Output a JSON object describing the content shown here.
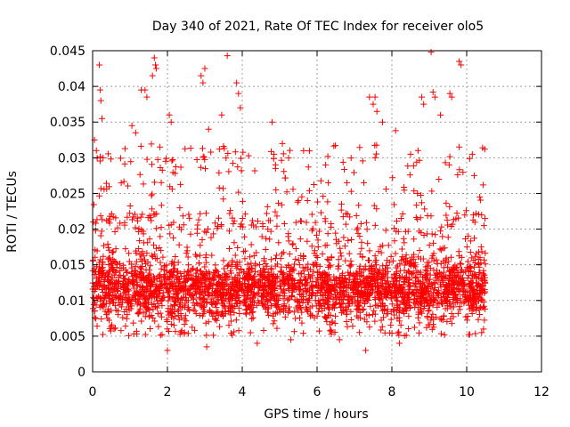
{
  "chart_data": {
    "type": "scatter",
    "title": "Day 340 of 2021, Rate Of TEC Index for receiver olo5",
    "xlabel": "GPS time / hours",
    "ylabel": "ROTI / TECUs",
    "xlim": [
      0,
      12
    ],
    "ylim": [
      0,
      0.045
    ],
    "x_ticks": [
      "0",
      "2",
      "4",
      "6",
      "8",
      "10",
      "12"
    ],
    "y_ticks": [
      "0",
      "0.005",
      "0.01",
      "0.015",
      "0.02",
      "0.025",
      "0.03",
      "0.035",
      "0.04",
      "0.045"
    ],
    "x_tick_values": [
      0,
      2,
      4,
      6,
      8,
      10,
      12
    ],
    "y_tick_values": [
      0,
      0.005,
      0.01,
      0.015,
      0.02,
      0.025,
      0.03,
      0.035,
      0.04,
      0.045
    ],
    "grid": true,
    "marker": "+",
    "color": "#ff0000",
    "series": [
      {
        "name": "ROTI",
        "x_range": [
          0,
          10.5
        ],
        "typical_range": [
          0.005,
          0.02
        ],
        "bulk_center": 0.011,
        "points": [
          [
            0.05,
            0.0325
          ],
          [
            0.1,
            0.031
          ],
          [
            0.18,
            0.043
          ],
          [
            0.2,
            0.0395
          ],
          [
            0.22,
            0.038
          ],
          [
            0.25,
            0.0355
          ],
          [
            0.28,
            0.03
          ],
          [
            0.08,
            0.0198
          ],
          [
            0.05,
            0.0085
          ],
          [
            1.05,
            0.0345
          ],
          [
            1.15,
            0.0335
          ],
          [
            1.3,
            0.0395
          ],
          [
            1.4,
            0.0395
          ],
          [
            1.45,
            0.0385
          ],
          [
            1.6,
            0.0415
          ],
          [
            1.65,
            0.044
          ],
          [
            1.68,
            0.043
          ],
          [
            1.7,
            0.0425
          ],
          [
            1.8,
            0.0315
          ],
          [
            2.05,
            0.036
          ],
          [
            2.1,
            0.035
          ],
          [
            2.9,
            0.0415
          ],
          [
            2.95,
            0.0405
          ],
          [
            3.0,
            0.0425
          ],
          [
            3.1,
            0.034
          ],
          [
            3.45,
            0.036
          ],
          [
            3.6,
            0.0443
          ],
          [
            3.85,
            0.0405
          ],
          [
            3.9,
            0.039
          ],
          [
            3.95,
            0.037
          ],
          [
            4.8,
            0.035
          ],
          [
            4.85,
            0.0305
          ],
          [
            4.9,
            0.0255
          ],
          [
            5.5,
            0.024
          ],
          [
            6.3,
            0.0265
          ],
          [
            6.8,
            0.0265
          ],
          [
            7.3,
            0.003
          ],
          [
            7.25,
            0.0265
          ],
          [
            7.4,
            0.0385
          ],
          [
            7.5,
            0.0375
          ],
          [
            7.55,
            0.0385
          ],
          [
            7.6,
            0.0365
          ],
          [
            7.75,
            0.035
          ],
          [
            8.1,
            0.0338
          ],
          [
            8.5,
            0.0305
          ],
          [
            8.7,
            0.031
          ],
          [
            8.8,
            0.0385
          ],
          [
            8.85,
            0.0375
          ],
          [
            9.05,
            0.0448
          ],
          [
            9.1,
            0.0392
          ],
          [
            9.15,
            0.0385
          ],
          [
            9.3,
            0.036
          ],
          [
            9.55,
            0.039
          ],
          [
            9.6,
            0.0385
          ],
          [
            9.8,
            0.0435
          ],
          [
            9.85,
            0.043
          ],
          [
            9.8,
            0.0315
          ],
          [
            10.15,
            0.0305
          ],
          [
            10.2,
            0.0275
          ],
          [
            10.4,
            0.0055
          ],
          [
            10.45,
            0.006
          ],
          [
            10.35,
            0.0245
          ],
          [
            2.0,
            0.003
          ],
          [
            3.05,
            0.0035
          ],
          [
            4.4,
            0.004
          ],
          [
            5.3,
            0.0045
          ],
          [
            6.6,
            0.0045
          ],
          [
            8.2,
            0.004
          ]
        ]
      }
    ]
  }
}
